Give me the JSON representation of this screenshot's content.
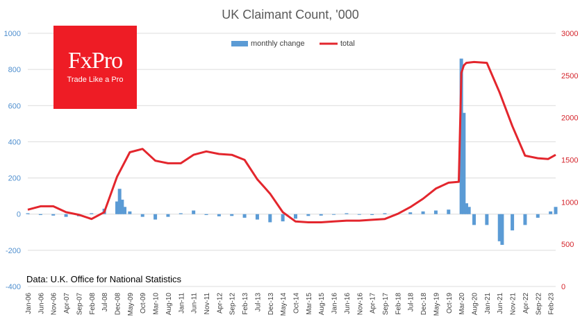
{
  "logo": {
    "brand": "FxPro",
    "tagline": "Trade Like a Pro"
  },
  "source_note": "Data: U.K. Office for National Statistics",
  "colors": {
    "bars": "#5b9bd5",
    "line": "#e3262d",
    "right_axis": "#d4232a",
    "left_axis": "#4f8fcf",
    "grid": "#dcdcdc"
  },
  "chart_data": {
    "type": "bar",
    "title": "UK Claimant Count, '000",
    "legend_position": "top-center",
    "grid": true,
    "ylim_left": [
      -400,
      1000
    ],
    "ylim_right": [
      0,
      3000
    ],
    "yticks_left": [
      "1000",
      "800",
      "600",
      "400",
      "200",
      "0",
      "-200",
      "-400"
    ],
    "yticks_right": [
      "3000",
      "2500",
      "2000",
      "1500",
      "1000",
      "500",
      "0"
    ],
    "xticks": [
      "Jan-06",
      "Jun-06",
      "Nov-06",
      "Apr-07",
      "Sep-07",
      "Feb-08",
      "Jul-08",
      "Dec-08",
      "May-09",
      "Oct-09",
      "Mar-10",
      "Aug-10",
      "Jan-11",
      "Jun-11",
      "Nov-11",
      "Apr-12",
      "Sep-12",
      "Feb-13",
      "Jul-13",
      "Dec-13",
      "May-14",
      "Oct-14",
      "Mar-15",
      "Aug-15",
      "Jan-16",
      "Jun-16",
      "Nov-16",
      "Apr-17",
      "Sep-17",
      "Feb-18",
      "Jul-18",
      "Dec-18",
      "May-19",
      "Oct-19",
      "Mar-20",
      "Aug-20",
      "Jan-21",
      "Jun-21",
      "Nov-21",
      "Apr-22",
      "Sep-22",
      "Feb-23"
    ],
    "series": [
      {
        "name": "monthly change",
        "type": "bar",
        "axis": "left",
        "color": "#5b9bd5",
        "x": [
          "Jan-06",
          "Jun-06",
          "Nov-06",
          "Apr-07",
          "Sep-07",
          "Feb-08",
          "Jul-08",
          "Dec-08",
          "Jan-09",
          "Feb-09",
          "Mar-09",
          "May-09",
          "Oct-09",
          "Mar-10",
          "Aug-10",
          "Jan-11",
          "Jun-11",
          "Nov-11",
          "Apr-12",
          "Sep-12",
          "Feb-13",
          "Jul-13",
          "Dec-13",
          "May-14",
          "Oct-14",
          "Mar-15",
          "Aug-15",
          "Jan-16",
          "Jun-16",
          "Nov-16",
          "Apr-17",
          "Sep-17",
          "Feb-18",
          "Jul-18",
          "Dec-18",
          "May-19",
          "Oct-19",
          "Mar-20",
          "Apr-20",
          "May-20",
          "Jun-20",
          "Aug-20",
          "Jan-21",
          "Jun-21",
          "Jul-21",
          "Nov-21",
          "Apr-22",
          "Sep-22",
          "Feb-23",
          "Apr-23"
        ],
        "values": [
          5,
          -5,
          -8,
          -15,
          -12,
          5,
          30,
          70,
          140,
          80,
          40,
          15,
          -15,
          -30,
          -15,
          5,
          20,
          -5,
          -12,
          -10,
          -20,
          -30,
          -45,
          -40,
          -25,
          -10,
          -8,
          0,
          5,
          -3,
          -5,
          5,
          5,
          10,
          15,
          20,
          25,
          860,
          560,
          60,
          40,
          -60,
          -60,
          -150,
          -170,
          -90,
          -60,
          -20,
          15,
          40
        ]
      },
      {
        "name": "total",
        "type": "line",
        "axis": "right",
        "color": "#e3262d",
        "x": [
          "Jan-06",
          "Jun-06",
          "Nov-06",
          "Apr-07",
          "Sep-07",
          "Feb-08",
          "Jul-08",
          "Dec-08",
          "May-09",
          "Oct-09",
          "Mar-10",
          "Aug-10",
          "Jan-11",
          "Jun-11",
          "Nov-11",
          "Apr-12",
          "Sep-12",
          "Feb-13",
          "Jul-13",
          "Dec-13",
          "May-14",
          "Oct-14",
          "Mar-15",
          "Aug-15",
          "Jan-16",
          "Jun-16",
          "Nov-16",
          "Apr-17",
          "Sep-17",
          "Feb-18",
          "Jul-18",
          "Dec-18",
          "May-19",
          "Oct-19",
          "Feb-20",
          "Mar-20",
          "Apr-20",
          "May-20",
          "Aug-20",
          "Jan-21",
          "Jun-21",
          "Nov-21",
          "Apr-22",
          "Sep-22",
          "Jan-23",
          "Apr-23"
        ],
        "values": [
          910,
          950,
          950,
          880,
          850,
          800,
          880,
          1300,
          1590,
          1630,
          1490,
          1460,
          1460,
          1560,
          1600,
          1570,
          1560,
          1500,
          1270,
          1100,
          880,
          770,
          760,
          760,
          770,
          780,
          780,
          790,
          800,
          860,
          940,
          1040,
          1160,
          1230,
          1240,
          2530,
          2620,
          2650,
          2660,
          2650,
          2300,
          1900,
          1550,
          1520,
          1510,
          1560
        ]
      }
    ]
  }
}
